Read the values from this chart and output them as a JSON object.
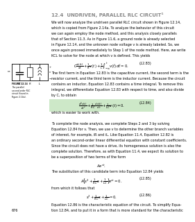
{
  "title": "12.4  UNDRIVEN, PARALLEL RLC CIRCUIT¹",
  "title_fontsize": 5.0,
  "body_fontsize": 3.5,
  "small_fontsize": 2.8,
  "bg_color": "#ffffff",
  "highlight_color": "#cde8c8",
  "page_number": "676",
  "eq_label_1": "(12.83)",
  "eq_label_2": "(12.84)",
  "eq_label_3": "(12.85)",
  "eq_label_4": "(12.86)"
}
